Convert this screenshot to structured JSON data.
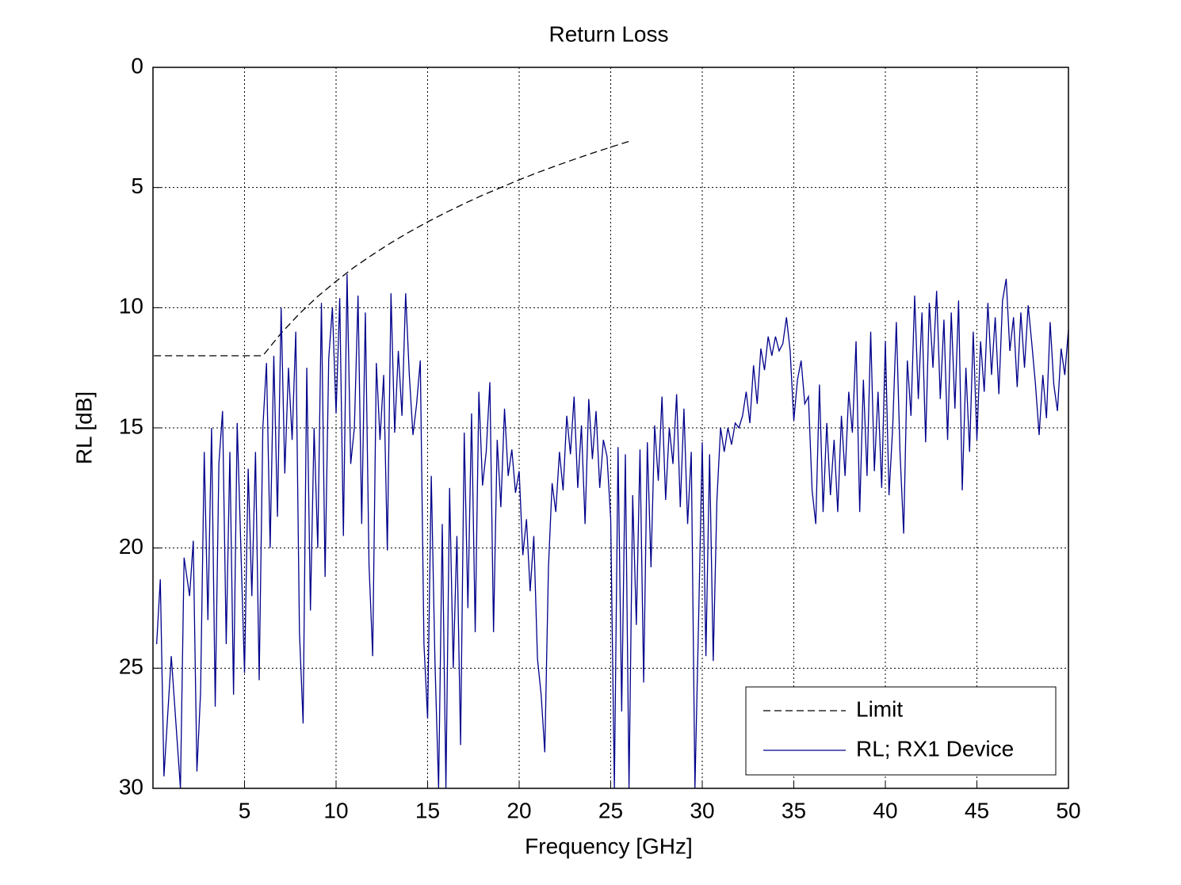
{
  "chart_data": {
    "type": "line",
    "title": "Return Loss",
    "xlabel": "Frequency [GHz]",
    "ylabel": "RL [dB]",
    "xlim": [
      0,
      50
    ],
    "xticks": [
      5,
      10,
      15,
      20,
      25,
      30,
      35,
      40,
      45,
      50
    ],
    "ylim": [
      0,
      30
    ],
    "yticks": [
      0,
      5,
      10,
      15,
      20,
      25,
      30
    ],
    "y_reversed": true,
    "grid": true,
    "legend": "lower right",
    "series": [
      {
        "name": "Limit",
        "color": "#000000",
        "dashed": true,
        "x": [
          0.05,
          6,
          7,
          8,
          9,
          10,
          11,
          12,
          13,
          14,
          15,
          16,
          17,
          18,
          19,
          20,
          21,
          22,
          23,
          24,
          25,
          26
        ],
        "values": [
          12,
          12,
          11.06,
          10.25,
          9.53,
          8.9,
          8.31,
          7.79,
          7.3,
          6.85,
          6.43,
          6.04,
          5.67,
          5.32,
          5.0,
          4.68,
          4.38,
          4.1,
          3.83,
          3.57,
          3.32,
          3.08
        ]
      },
      {
        "name": "RL; RX1 Device",
        "color": "#00008b",
        "dashed": false,
        "x": [
          0.2,
          0.4,
          0.6,
          0.8,
          1.0,
          1.5,
          1.7,
          2.0,
          2.2,
          2.4,
          2.6,
          2.8,
          3.0,
          3.2,
          3.4,
          3.6,
          3.8,
          4.0,
          4.2,
          4.4,
          4.6,
          4.8,
          5.0,
          5.2,
          5.4,
          5.6,
          5.8,
          6.0,
          6.2,
          6.4,
          6.6,
          6.8,
          7.0,
          7.2,
          7.4,
          7.6,
          7.8,
          8.0,
          8.2,
          8.4,
          8.6,
          8.8,
          9.0,
          9.2,
          9.4,
          9.6,
          9.8,
          10.0,
          10.2,
          10.4,
          10.6,
          10.8,
          11.0,
          11.2,
          11.4,
          11.6,
          11.8,
          12.0,
          12.2,
          12.4,
          12.6,
          12.8,
          13.0,
          13.2,
          13.4,
          13.6,
          13.8,
          14.0,
          14.2,
          14.4,
          14.6,
          14.8,
          15.0,
          15.2,
          15.4,
          15.6,
          15.8,
          16.0,
          16.2,
          16.4,
          16.6,
          16.8,
          17.0,
          17.2,
          17.4,
          17.6,
          17.8,
          18.0,
          18.2,
          18.4,
          18.6,
          18.8,
          19.0,
          19.2,
          19.4,
          19.6,
          19.8,
          20.0,
          20.2,
          20.4,
          20.6,
          20.8,
          21.0,
          21.2,
          21.4,
          21.6,
          21.8,
          22.0,
          22.2,
          22.4,
          22.6,
          22.8,
          23.0,
          23.2,
          23.4,
          23.6,
          23.8,
          24.0,
          24.2,
          24.4,
          24.6,
          24.8,
          25.0,
          25.2,
          25.4,
          25.6,
          25.8,
          26.0,
          26.2,
          26.4,
          26.6,
          26.8,
          27.0,
          27.2,
          27.4,
          27.6,
          27.8,
          28.0,
          28.2,
          28.4,
          28.6,
          28.8,
          29.0,
          29.2,
          29.4,
          29.6,
          29.8,
          30.0,
          30.2,
          30.4,
          30.6,
          30.8,
          31.0,
          31.2,
          31.4,
          31.6,
          31.8,
          32.0,
          32.2,
          32.4,
          32.6,
          32.8,
          33.0,
          33.2,
          33.4,
          33.6,
          33.8,
          34.0,
          34.2,
          34.4,
          34.6,
          34.8,
          35.0,
          35.2,
          35.4,
          35.6,
          35.8,
          36.0,
          36.2,
          36.4,
          36.6,
          36.8,
          37.0,
          37.2,
          37.4,
          37.6,
          37.8,
          38.0,
          38.2,
          38.4,
          38.6,
          38.8,
          39.0,
          39.2,
          39.4,
          39.6,
          39.8,
          40.0,
          40.2,
          40.4,
          40.6,
          40.8,
          41.0,
          41.2,
          41.4,
          41.6,
          41.8,
          42.0,
          42.2,
          42.4,
          42.6,
          42.8,
          43.0,
          43.2,
          43.4,
          43.6,
          43.8,
          44.0,
          44.2,
          44.4,
          44.6,
          44.8,
          45.0,
          45.2,
          45.4,
          45.6,
          45.8,
          46.0,
          46.2,
          46.4,
          46.6,
          46.8,
          47.0,
          47.2,
          47.4,
          47.6,
          47.8,
          48.0,
          48.2,
          48.4,
          48.6,
          48.8,
          49.0,
          49.2,
          49.4,
          49.6,
          49.8,
          50.0
        ],
        "values": [
          24,
          21.3,
          29.5,
          27,
          24.5,
          30,
          20.4,
          22,
          19.7,
          29.3,
          26,
          16,
          23,
          15,
          26.6,
          16.5,
          14.3,
          24,
          16,
          26.1,
          14.8,
          20,
          25.2,
          16.7,
          22,
          16,
          25.5,
          15,
          12.3,
          20,
          12,
          18.7,
          10,
          16.9,
          12.5,
          15.5,
          11,
          23.5,
          27.3,
          12.5,
          22.6,
          15,
          20,
          9.8,
          21.2,
          12.1,
          10,
          14.4,
          9.6,
          19.5,
          8.6,
          16.5,
          15,
          9.5,
          19,
          10.2,
          20.7,
          24.5,
          12.3,
          15.5,
          12.8,
          20.1,
          9.4,
          15.2,
          11.8,
          14.5,
          9.4,
          12.8,
          15.3,
          14,
          12.2,
          24,
          27.1,
          17,
          24.7,
          30,
          19,
          30,
          17.5,
          25,
          19.5,
          28.2,
          15.2,
          22.5,
          14.4,
          23.5,
          13.5,
          17.4,
          16,
          13.1,
          23.5,
          15.5,
          18.3,
          14.2,
          17,
          15.9,
          17.7,
          16.8,
          20.3,
          18.8,
          21.8,
          19.5,
          24.6,
          26.1,
          28.5,
          20.8,
          17.3,
          18.5,
          16,
          17.6,
          14.5,
          16.1,
          13.7,
          17.5,
          14.9,
          19,
          13.8,
          16.3,
          14.3,
          17.5,
          15.5,
          16.2,
          18.8,
          30,
          15.8,
          26.8,
          16.1,
          30,
          17.8,
          23.2,
          15.9,
          25.6,
          15.6,
          20.8,
          14.9,
          17.2,
          13.7,
          18,
          15,
          16.5,
          13.6,
          18.3,
          14.2,
          19,
          16,
          30,
          23,
          15.6,
          24.5,
          16.1,
          24.7,
          18,
          15,
          16,
          15,
          15.7,
          14.8,
          15,
          14.5,
          13.5,
          14.8,
          12.4,
          14,
          11.7,
          12.6,
          11.2,
          12,
          11.2,
          11.8,
          11.5,
          10.4,
          11.8,
          14.7,
          13,
          12.2,
          14,
          13.7,
          17.6,
          19,
          13.2,
          18.5,
          14.8,
          17.8,
          15.5,
          18.5,
          14.5,
          17,
          13.5,
          15.2,
          11.4,
          18.5,
          13,
          17,
          11,
          16.8,
          13.5,
          17.5,
          11.4,
          17.8,
          15,
          10.6,
          16,
          19.4,
          12.2,
          14.5,
          9.5,
          13.8,
          10.2,
          15.6,
          9.8,
          12.5,
          9.3,
          13.8,
          10.5,
          15.5,
          10.2,
          14.2,
          9.7,
          17.6,
          12.5,
          16,
          11,
          15.5,
          11.4,
          13.5,
          9.8,
          12.8,
          10.4,
          13.6,
          9.7,
          8.8,
          11.8,
          10.4,
          13.3,
          10.2,
          12.5,
          9.9,
          11.5,
          13.2,
          15.3,
          12.8,
          14.6,
          10.6,
          13.2,
          14.3,
          11.7,
          12.8,
          10.9
        ]
      }
    ]
  }
}
